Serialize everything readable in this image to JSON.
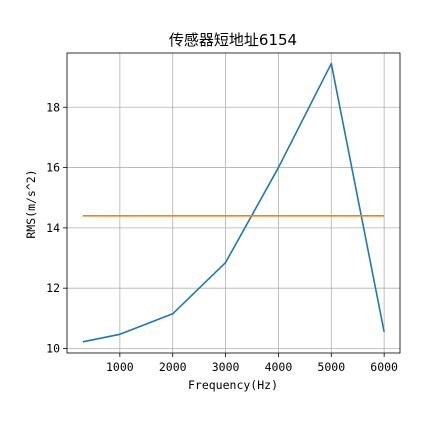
{
  "chart_data": {
    "type": "line",
    "title": "传感器短地址6154",
    "xlabel": "Frequency(Hz)",
    "ylabel": "RMS(m/s^2)",
    "xlim": [
      0,
      6300
    ],
    "ylim": [
      9.85,
      19.8
    ],
    "xticks": [
      1000,
      2000,
      3000,
      4000,
      5000,
      6000
    ],
    "yticks": [
      10,
      12,
      14,
      16,
      18
    ],
    "grid": true,
    "series": [
      {
        "color": "#1f77b4",
        "x": [
          300,
          1000,
          2000,
          3000,
          4000,
          5000,
          6000
        ],
        "y": [
          10.22,
          10.47,
          11.15,
          12.85,
          16.0,
          19.45,
          10.55
        ]
      },
      {
        "color": "#ff7f0e",
        "x": [
          300,
          6000
        ],
        "y": [
          14.4,
          14.4
        ]
      }
    ]
  }
}
